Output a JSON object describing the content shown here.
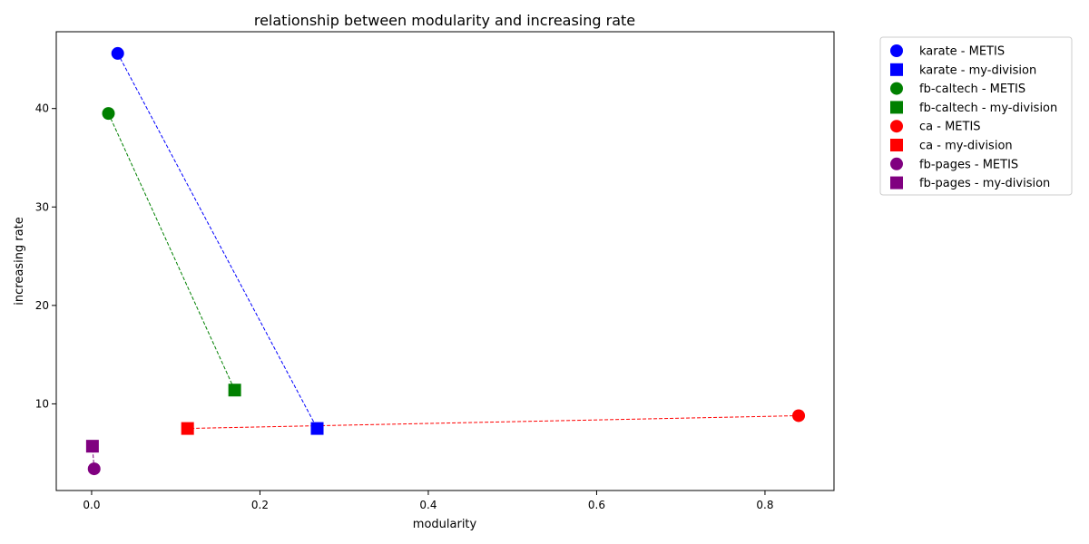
{
  "chart_data": {
    "type": "scatter",
    "title": "relationship between modularity and increasing rate",
    "xlabel": "modularity",
    "ylabel": "increasing rate",
    "xlim": [
      -0.042,
      0.882
    ],
    "ylim": [
      1.2,
      47.8
    ],
    "xticks": [
      0.0,
      0.2,
      0.4,
      0.6,
      0.8
    ],
    "xtick_labels": [
      "0.0",
      "0.2",
      "0.4",
      "0.6",
      "0.8"
    ],
    "yticks": [
      10,
      20,
      30,
      40
    ],
    "ytick_labels": [
      "10",
      "20",
      "30",
      "40"
    ],
    "grid": false,
    "legend_position": "outside-top-right",
    "datasets": [
      {
        "name": "karate",
        "color": "#0000ff",
        "points": [
          {
            "method": "METIS",
            "marker": "circle",
            "x": 0.031,
            "y": 45.6,
            "legend": "karate - METIS"
          },
          {
            "method": "my-division",
            "marker": "square",
            "x": 0.268,
            "y": 7.5,
            "legend": "karate - my-division"
          }
        ]
      },
      {
        "name": "fb-caltech",
        "color": "#008000",
        "points": [
          {
            "method": "METIS",
            "marker": "circle",
            "x": 0.02,
            "y": 39.5,
            "legend": "fb-caltech - METIS"
          },
          {
            "method": "my-division",
            "marker": "square",
            "x": 0.17,
            "y": 11.4,
            "legend": "fb-caltech - my-division"
          }
        ]
      },
      {
        "name": "ca",
        "color": "#ff0000",
        "points": [
          {
            "method": "METIS",
            "marker": "circle",
            "x": 0.84,
            "y": 8.8,
            "legend": "ca - METIS"
          },
          {
            "method": "my-division",
            "marker": "square",
            "x": 0.114,
            "y": 7.5,
            "legend": "ca - my-division"
          }
        ]
      },
      {
        "name": "fb-pages",
        "color": "#800080",
        "points": [
          {
            "method": "METIS",
            "marker": "circle",
            "x": 0.003,
            "y": 3.4,
            "legend": "fb-pages - METIS"
          },
          {
            "method": "my-division",
            "marker": "square",
            "x": 0.001,
            "y": 5.7,
            "legend": "fb-pages - my-division"
          }
        ]
      }
    ]
  }
}
